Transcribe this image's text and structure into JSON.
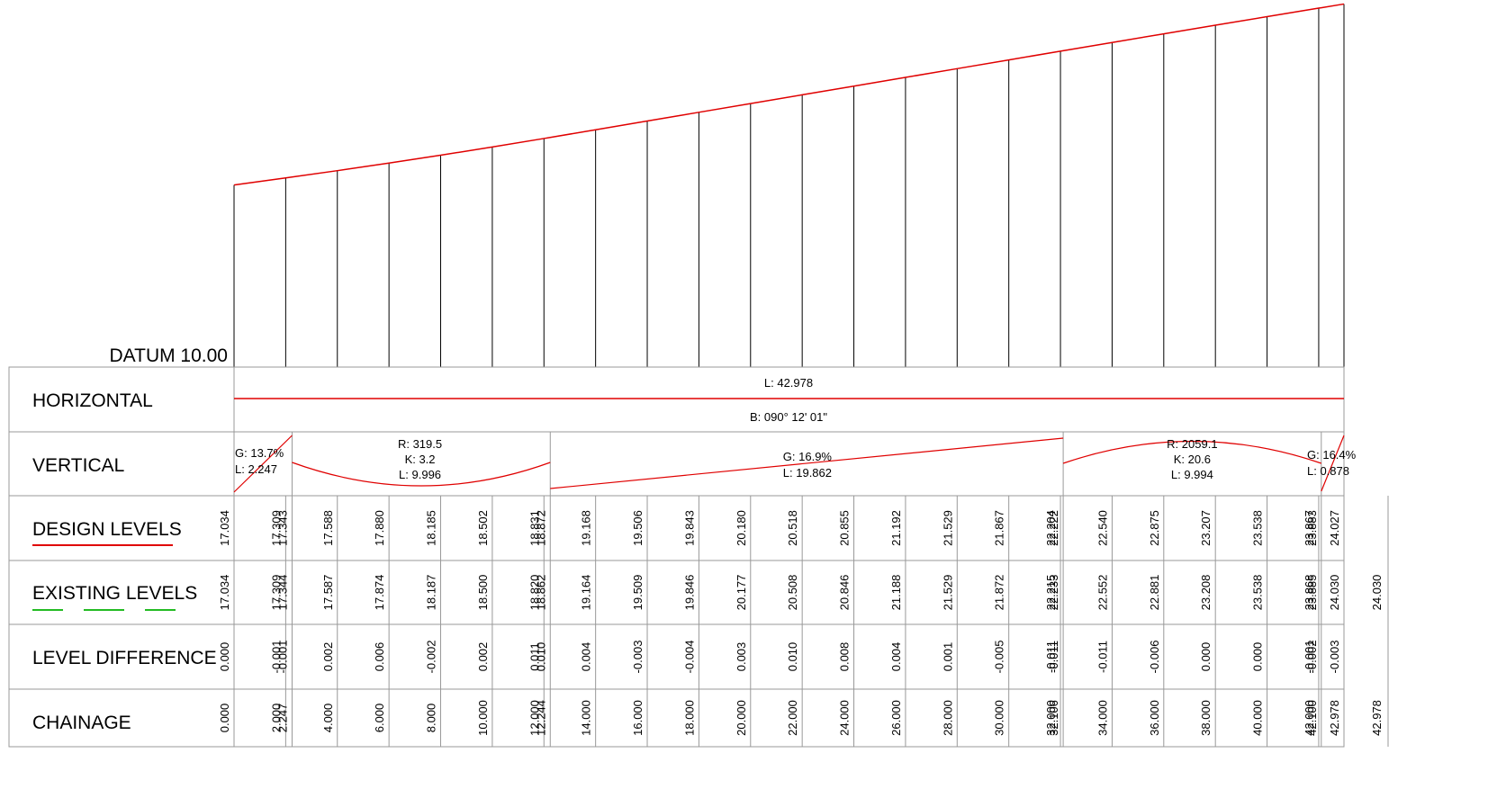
{
  "datum_label": "DATUM 10.00",
  "rows": {
    "horizontal": "HORIZONTAL",
    "vertical": "VERTICAL",
    "design": "DESIGN LEVELS",
    "existing": "EXISTING LEVELS",
    "difference": "LEVEL DIFFERENCE",
    "chainage": "CHAINAGE"
  },
  "horizontal_alignment": {
    "length": "L: 42.978",
    "bearing": "B: 090° 12' 01\""
  },
  "vertical_alignment": [
    {
      "type": "grade",
      "lines": [
        "G: 13.7%",
        "L: 2.247"
      ]
    },
    {
      "type": "curve",
      "lines": [
        "R: 319.5",
        "K: 3.2",
        "L: 9.996"
      ]
    },
    {
      "type": "grade",
      "lines": [
        "G: 16.9%",
        "L: 19.862"
      ]
    },
    {
      "type": "curve",
      "lines": [
        "R: 2059.1",
        "K: 20.6",
        "L: 9.994"
      ]
    },
    {
      "type": "grade",
      "lines": [
        "G: 16.4%",
        "L: 0.878"
      ]
    }
  ],
  "colors": {
    "design_line": "#e00000",
    "existing_dash": "#22bb22",
    "grid": "#000000",
    "cell_border": "#999999"
  },
  "chart_data": {
    "type": "line",
    "datum": 10.0,
    "chainage": [
      "0.000",
      "2.000",
      "2.247",
      "4.000",
      "6.000",
      "8.000",
      "10.000",
      "12.000",
      "12.244",
      "14.000",
      "16.000",
      "18.000",
      "20.000",
      "22.000",
      "24.000",
      "26.000",
      "28.000",
      "30.000",
      "32.000",
      "32.106",
      "34.000",
      "36.000",
      "38.000",
      "40.000",
      "42.000",
      "42.100",
      "42.978",
      "42.978"
    ],
    "design_levels": [
      "17.034",
      "17.309",
      "17.343",
      "17.588",
      "17.880",
      "18.185",
      "18.502",
      "18.831",
      "18.872",
      "19.168",
      "19.506",
      "19.843",
      "20.180",
      "20.518",
      "20.855",
      "21.192",
      "21.529",
      "21.867",
      "22.204",
      "22.222",
      "22.540",
      "22.875",
      "23.207",
      "23.538",
      "23.867",
      "23.883",
      "24.027",
      ""
    ],
    "existing_levels": [
      "17.034",
      "17.309",
      "17.344",
      "17.587",
      "17.874",
      "18.187",
      "18.500",
      "18.820",
      "18.862",
      "19.164",
      "19.509",
      "19.846",
      "20.177",
      "20.508",
      "20.846",
      "21.188",
      "21.529",
      "21.872",
      "22.215",
      "22.233",
      "22.552",
      "22.881",
      "23.208",
      "23.538",
      "23.868",
      "23.885",
      "24.030",
      "24.030"
    ],
    "level_difference": [
      "0.000",
      "-0.001",
      "-0.001",
      "0.002",
      "0.006",
      "-0.002",
      "0.002",
      "0.011",
      "0.010",
      "0.004",
      "-0.003",
      "-0.004",
      "0.003",
      "0.010",
      "0.008",
      "0.004",
      "0.001",
      "-0.005",
      "-0.011",
      "-0.011",
      "-0.011",
      "-0.006",
      "0.000",
      "0.000",
      "-0.001",
      "-0.002",
      "-0.003",
      ""
    ]
  }
}
